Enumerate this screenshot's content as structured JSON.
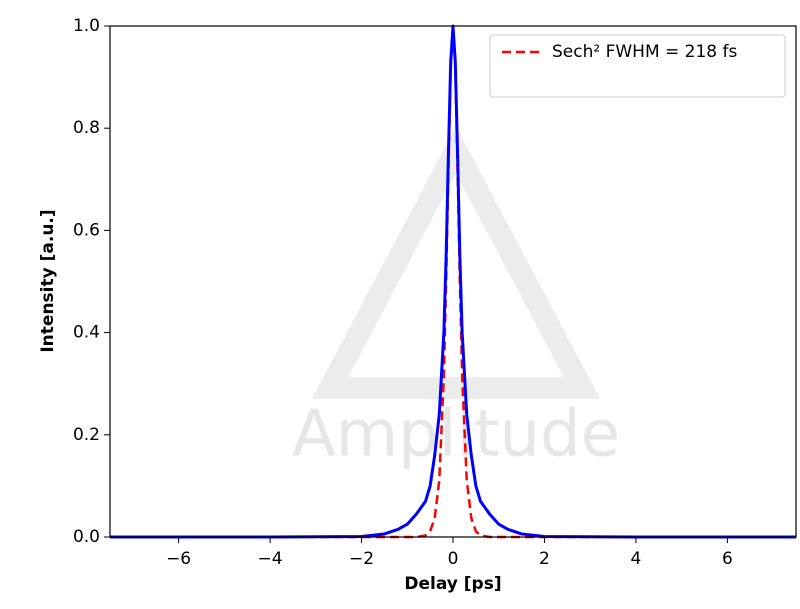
{
  "chart_data": {
    "type": "line",
    "watermark": "Amplitude",
    "xlabel": "Delay [ps]",
    "ylabel": "Intensity [a.u.]",
    "x": [
      -7.5,
      -6,
      -4,
      -2,
      -1.5,
      -1.2,
      -1,
      -0.8,
      -0.6,
      -0.5,
      -0.4,
      -0.3,
      -0.2,
      -0.15,
      -0.1,
      -0.05,
      0,
      0.05,
      0.1,
      0.15,
      0.2,
      0.3,
      0.4,
      0.5,
      0.6,
      0.8,
      1,
      1.2,
      1.5,
      2,
      4,
      6,
      7.5
    ],
    "series": [
      {
        "color": "#0000ff",
        "dash": false,
        "values": [
          0,
          0,
          0,
          0.001,
          0.006,
          0.015,
          0.025,
          0.045,
          0.07,
          0.1,
          0.16,
          0.24,
          0.4,
          0.55,
          0.75,
          0.93,
          1,
          0.93,
          0.75,
          0.55,
          0.4,
          0.24,
          0.16,
          0.1,
          0.07,
          0.045,
          0.025,
          0.015,
          0.006,
          0.001,
          0,
          0,
          0
        ]
      },
      {
        "name": "Sech² FWHM = 218 fs",
        "color": "#ff0000",
        "dash": true,
        "values": [
          0,
          0,
          0,
          0,
          0,
          0,
          0,
          0,
          0.003,
          0.011,
          0.037,
          0.111,
          0.316,
          0.5,
          0.72,
          0.92,
          1,
          0.92,
          0.72,
          0.5,
          0.316,
          0.111,
          0.037,
          0.011,
          0.003,
          0,
          0,
          0,
          0,
          0,
          0,
          0,
          0
        ]
      }
    ],
    "xlim": [
      -7.5,
      7.5
    ],
    "xticks": [
      {
        "value": -6,
        "label": "−6"
      },
      {
        "value": -4,
        "label": "−4"
      },
      {
        "value": -2,
        "label": "−2"
      },
      0,
      2,
      4,
      6
    ],
    "ylim": [
      0,
      1
    ],
    "yticks": [
      {
        "value": 0,
        "label": "0.0"
      },
      0.2,
      0.4,
      0.6,
      0.8,
      {
        "value": 1,
        "label": "1.0"
      }
    ],
    "legend": "upper right"
  }
}
